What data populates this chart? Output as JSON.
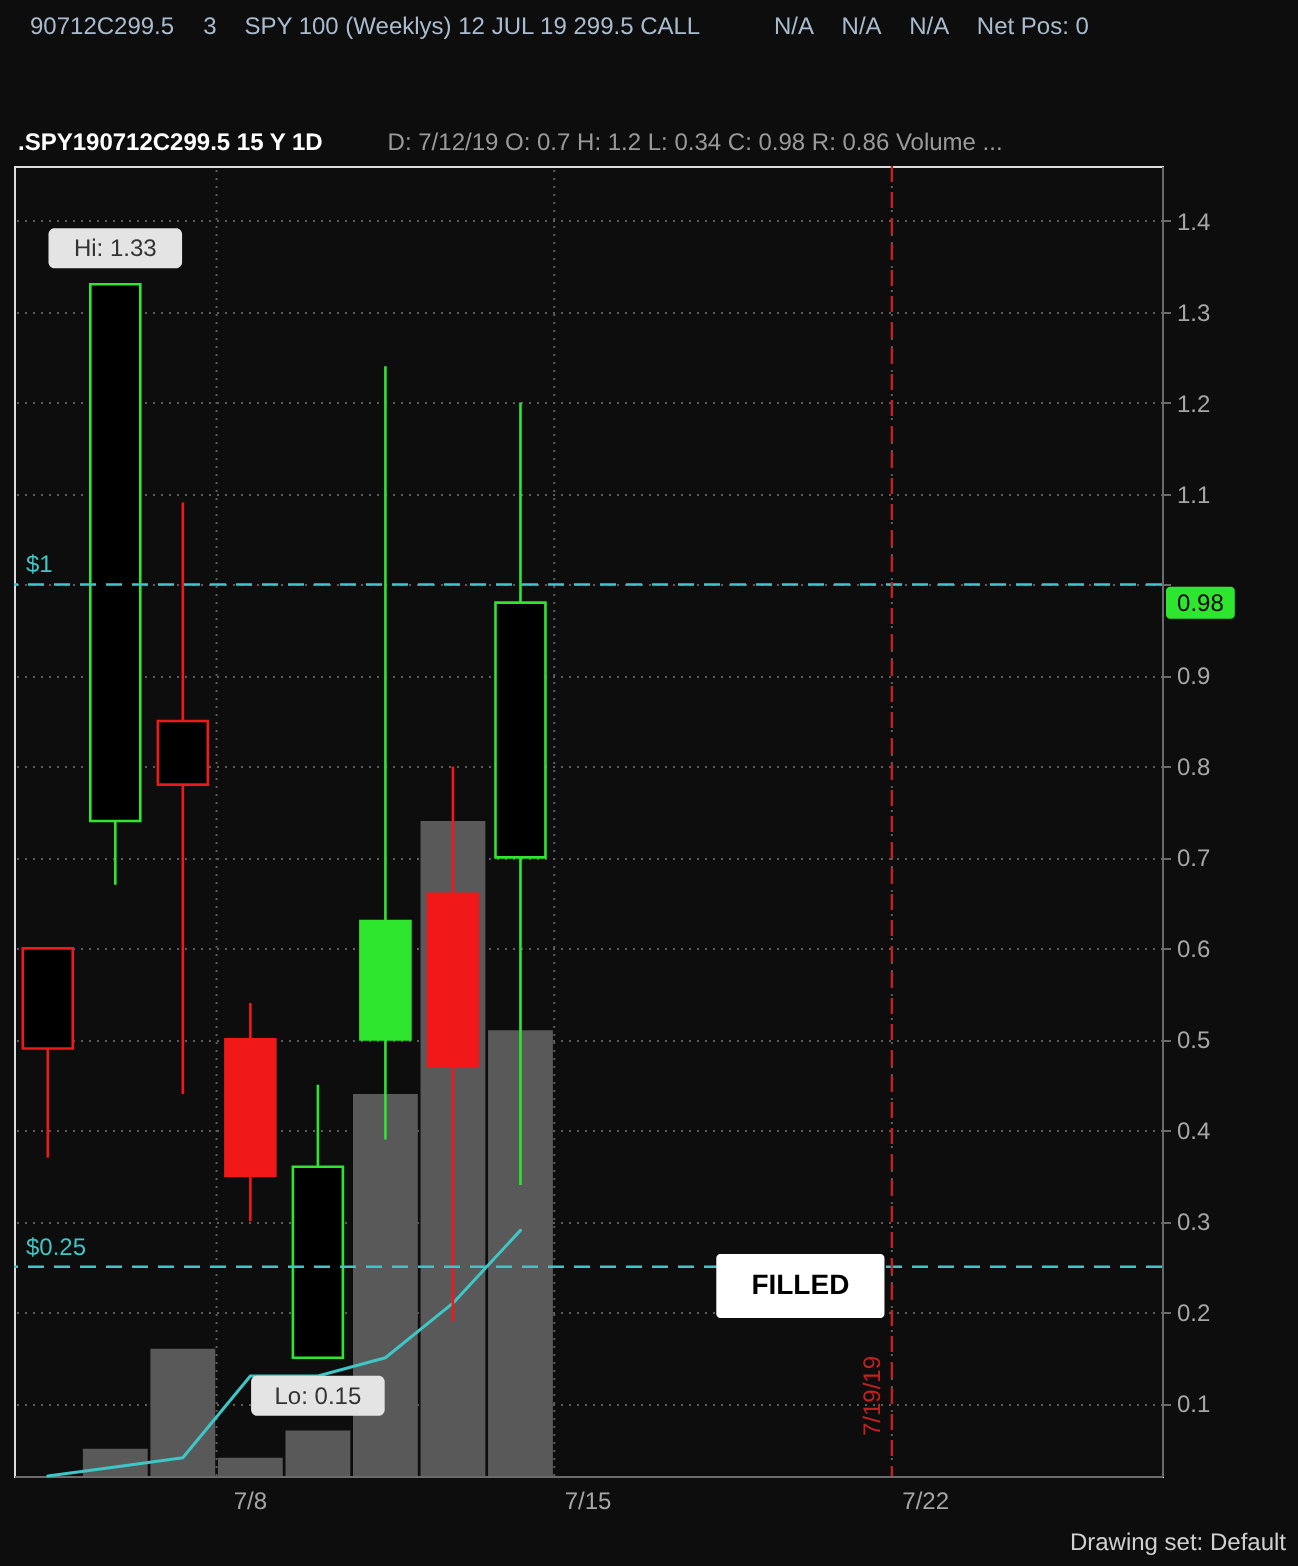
{
  "chart_data": {
    "type": "candlestick",
    "title": ".SPY190712C299.5 15 Y 1D",
    "subtitle": "D: 7/12/19  O: 0.7  H: 1.2  L: 0.34  C: 0.98  R: 0.86  Volume  ...",
    "categories": [
      null,
      null,
      null,
      "7/8",
      null,
      null,
      null,
      null,
      "7/15",
      null,
      null,
      null,
      null,
      "7/22",
      null,
      null,
      null
    ],
    "ohlc": [
      [
        0.49,
        0.6,
        0.37,
        0.6
      ],
      [
        0.74,
        1.33,
        0.67,
        1.33
      ],
      [
        0.78,
        1.09,
        0.44,
        0.85
      ],
      [
        0.5,
        0.54,
        0.3,
        0.35
      ],
      [
        0.15,
        0.45,
        0.15,
        0.36
      ],
      [
        0.63,
        1.24,
        0.39,
        0.5
      ],
      [
        0.66,
        0.8,
        0.19,
        0.47
      ],
      [
        0.7,
        1.2,
        0.34,
        0.98
      ],
      null,
      null,
      null,
      null,
      null,
      null,
      null,
      null,
      null
    ],
    "colors": [
      "#f01818",
      "#2ee62e",
      "#f01818",
      "#f01818",
      "#2ee62e",
      "#2ee62e",
      "#f01818",
      "#2ee62e",
      null,
      null,
      null,
      null,
      null,
      null,
      null,
      null,
      null
    ],
    "series": [
      {
        "type": "bar",
        "color": "#595959",
        "base": [
          null,
          0.02,
          0.02,
          0.02,
          0.02,
          0.02,
          0.02,
          0.02,
          null,
          null,
          null,
          null,
          null,
          null,
          null,
          null,
          null
        ],
        "values": [
          null,
          0.03,
          0.14,
          0.02,
          0.05,
          0.42,
          0.72,
          0.49,
          null,
          null,
          null,
          null,
          null,
          null,
          null,
          null,
          null
        ]
      },
      {
        "type": "line",
        "color": "#3fc6c6",
        "values": [
          0.02,
          0.03,
          0.04,
          0.13,
          0.13,
          0.15,
          0.21,
          0.29,
          null,
          null,
          null,
          null,
          null,
          null,
          null,
          null,
          null
        ]
      }
    ],
    "ylim": [
      0.02,
      1.46
    ],
    "yticks": [
      0.1,
      0.2,
      0.3,
      0.4,
      0.5,
      0.6,
      0.7,
      0.8,
      0.9,
      {
        "value": 1,
        "label": null
      },
      1.1,
      1.2,
      1.3,
      1.4
    ],
    "grid": true,
    "ref_lines": [
      {
        "axis": "y",
        "value": 1,
        "label": "$1",
        "color": "#3fc6c6",
        "line_style": "dashed"
      },
      {
        "axis": "y",
        "value": 0.25,
        "label": "$0.25",
        "color": "#3fc6c6",
        "line_style": "dashed"
      },
      {
        "axis": "x",
        "value": "7/22",
        "label": "7/19/19",
        "color": "#c42020",
        "line_style": "dashed"
      }
    ],
    "annotations": [
      "90712C299.5",
      "3",
      "SPY 100 (Weeklys) 12 JUL 19 299.5 CALL",
      "N/A",
      "N/A",
      "N/A",
      "Net Pos: 0",
      {
        "text": "Hi: 1.33",
        "y": 1.33
      },
      {
        "text": "Lo: 0.15",
        "y": 0.15
      },
      {
        "text": "0.98",
        "y": 0.98
      },
      "FILLED",
      "Drawing set: Default"
    ]
  }
}
